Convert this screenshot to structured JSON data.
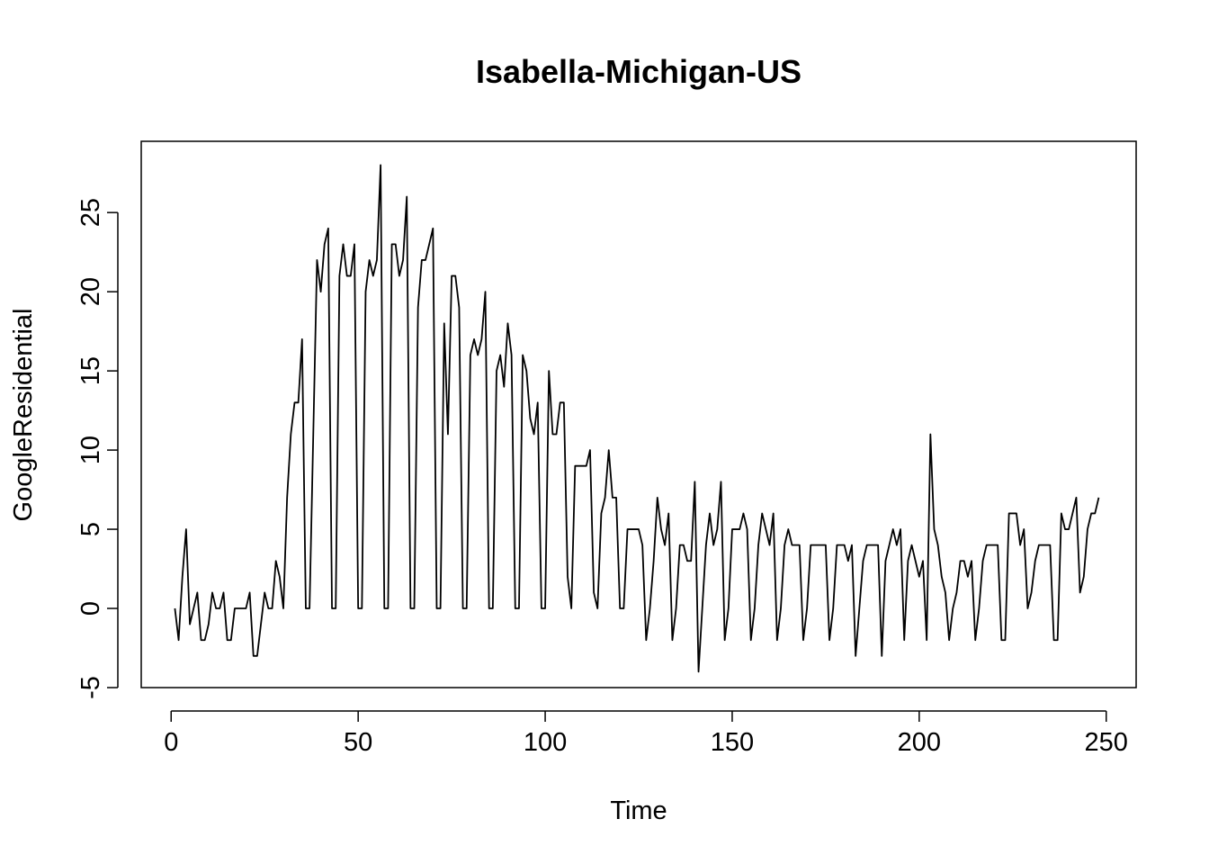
{
  "chart_data": {
    "type": "line",
    "title": "Isabella-Michigan-US",
    "xlabel": "Time",
    "ylabel": "GoogleResidential",
    "xlim": [
      -8,
      258
    ],
    "ylim": [
      -5,
      29.5
    ],
    "x_ticks": [
      0,
      50,
      100,
      150,
      200,
      250
    ],
    "y_ticks": [
      -5,
      0,
      5,
      10,
      15,
      20,
      25
    ],
    "grid": false,
    "legend": "none",
    "line_color": "#000000",
    "x_start": 1,
    "series": [
      {
        "values": [
          0,
          -2,
          2,
          5,
          -1,
          0,
          1,
          -2,
          -2,
          -1,
          1,
          0,
          0,
          1,
          -2,
          -2,
          0,
          0,
          0,
          0,
          1,
          -3,
          -3,
          -1,
          1,
          0,
          0,
          3,
          2,
          0,
          7,
          11,
          13,
          13,
          17,
          0,
          0,
          11,
          22,
          20,
          23,
          24,
          0,
          0,
          21,
          23,
          21,
          21,
          23,
          0,
          0,
          20,
          22,
          21,
          22,
          28,
          0,
          0,
          23,
          23,
          21,
          22,
          26,
          0,
          0,
          19,
          22,
          22,
          23,
          24,
          0,
          0,
          18,
          11,
          21,
          21,
          19,
          0,
          0,
          16,
          17,
          16,
          17,
          20,
          0,
          0,
          15,
          16,
          14,
          18,
          16,
          0,
          0,
          16,
          15,
          12,
          11,
          13,
          0,
          0,
          15,
          11,
          11,
          13,
          13,
          2,
          0,
          9,
          9,
          9,
          9,
          10,
          1,
          0,
          6,
          7,
          10,
          7,
          7,
          0,
          0,
          5,
          5,
          5,
          5,
          4,
          -2,
          0,
          3,
          7,
          5,
          4,
          6,
          -2,
          0,
          4,
          4,
          3,
          3,
          8,
          -4,
          0,
          4,
          6,
          4,
          5,
          8,
          -2,
          0,
          5,
          5,
          5,
          6,
          5,
          -2,
          0,
          4,
          6,
          5,
          4,
          6,
          -2,
          0,
          4,
          5,
          4,
          4,
          4,
          -2,
          0,
          4,
          4,
          4,
          4,
          4,
          -2,
          0,
          4,
          4,
          4,
          3,
          4,
          -3,
          0,
          3,
          4,
          4,
          4,
          4,
          -3,
          3,
          4,
          5,
          4,
          5,
          -2,
          3,
          4,
          3,
          2,
          3,
          -2,
          11,
          5,
          4,
          2,
          1,
          -2,
          0,
          1,
          3,
          3,
          2,
          3,
          -2,
          0,
          3,
          4,
          4,
          4,
          4,
          -2,
          -2,
          6,
          6,
          6,
          4,
          5,
          0,
          1,
          3,
          4,
          4,
          4,
          4,
          -2,
          -2,
          6,
          5,
          5,
          6,
          7,
          1,
          2,
          5,
          6,
          6,
          7
        ]
      }
    ]
  }
}
